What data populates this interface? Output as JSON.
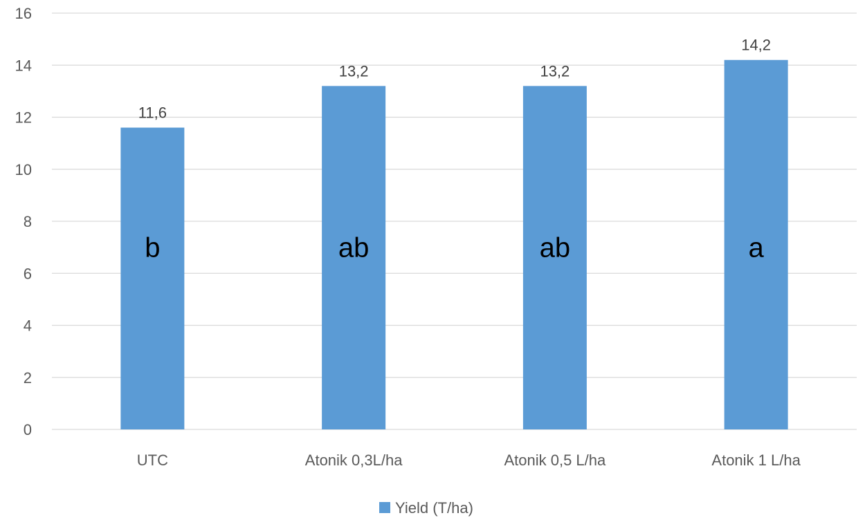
{
  "chart_data": {
    "type": "bar",
    "categories": [
      "UTC",
      "Atonik 0,3L/ha",
      "Atonik 0,5 L/ha",
      "Atonik 1 L/ha"
    ],
    "series": [
      {
        "name": "Yield (T/ha)",
        "values": [
          11.6,
          13.2,
          13.2,
          14.2
        ],
        "color": "#5b9bd5"
      }
    ],
    "data_labels": [
      "11,6",
      "13,2",
      "13,2",
      "14,2"
    ],
    "significance_letters": [
      "b",
      "ab",
      "ab",
      "a"
    ],
    "ylim": [
      0,
      16
    ],
    "yticks": [
      0,
      2,
      4,
      6,
      8,
      10,
      12,
      14,
      16
    ],
    "grid": true,
    "legend_position": "bottom",
    "colors": {
      "bar": "#5b9bd5",
      "grid": "#d9d9d9",
      "axis_text": "#595959"
    }
  }
}
